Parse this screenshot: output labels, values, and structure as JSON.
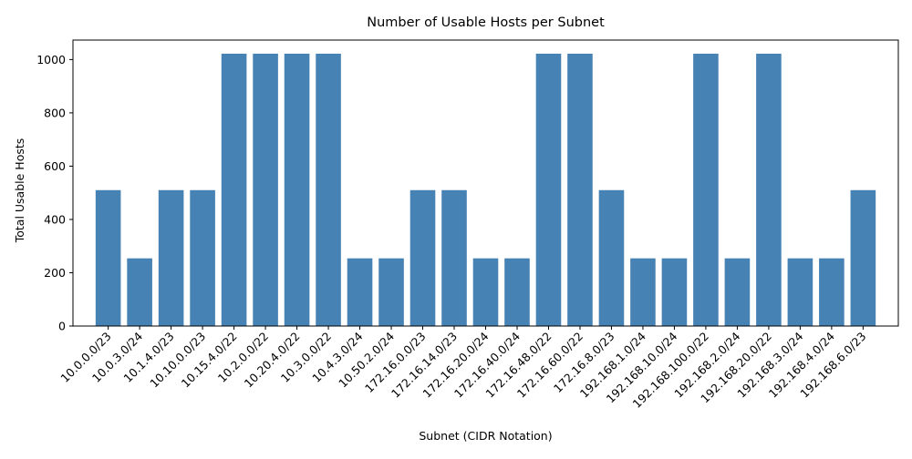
{
  "chart_data": {
    "type": "bar",
    "title": "Number of Usable Hosts per Subnet",
    "xlabel": "Subnet (CIDR Notation)",
    "ylabel": "Total Usable Hosts",
    "categories": [
      "10.0.0.0/23",
      "10.0.3.0/24",
      "10.1.4.0/23",
      "10.10.0.0/23",
      "10.15.4.0/22",
      "10.2.0.0/22",
      "10.20.4.0/22",
      "10.3.0.0/22",
      "10.4.3.0/24",
      "10.50.2.0/24",
      "172.16.0.0/23",
      "172.16.14.0/23",
      "172.16.20.0/24",
      "172.16.40.0/24",
      "172.16.48.0/22",
      "172.16.60.0/22",
      "172.16.8.0/23",
      "192.168.1.0/24",
      "192.168.10.0/24",
      "192.168.100.0/22",
      "192.168.2.0/24",
      "192.168.20.0/22",
      "192.168.3.0/24",
      "192.168.4.0/24",
      "192.168.6.0/23"
    ],
    "values": [
      510,
      254,
      510,
      510,
      1022,
      1022,
      1022,
      1022,
      254,
      254,
      510,
      510,
      254,
      254,
      1022,
      1022,
      510,
      254,
      254,
      1022,
      254,
      1022,
      254,
      254,
      510
    ],
    "ylim": [
      0,
      1073.1
    ],
    "yticks": [
      0,
      200,
      400,
      600,
      800,
      1000
    ],
    "grid": false,
    "bar_color": "#4682b4"
  }
}
